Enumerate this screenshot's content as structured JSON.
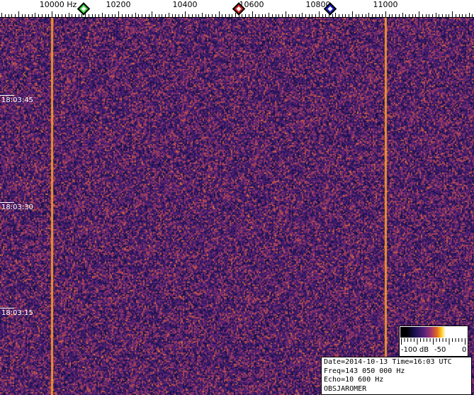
{
  "frequency_scale": {
    "unit": "Hz",
    "labels": [
      "10000 Hz",
      "10200",
      "10400",
      "10600",
      "10800",
      "11000"
    ],
    "label_values": [
      10000,
      10200,
      10400,
      10600,
      10800,
      11000
    ],
    "markers": [
      {
        "name": "green-marker",
        "freq": 10096,
        "color": "#3ad43a"
      },
      {
        "name": "red-marker",
        "freq": 10560,
        "color": "#d42020"
      },
      {
        "name": "blue-marker",
        "freq": 10834,
        "color": "#1c20c0"
      }
    ]
  },
  "time_axis": {
    "labels": [
      "18:03:45",
      "18:03:30",
      "18:03:15"
    ]
  },
  "waterfall": {
    "strong_lines_hz": [
      10000,
      11000
    ],
    "base_color": "#4a2272",
    "line_color": "#e88a30"
  },
  "colorbar": {
    "labels": [
      "-100 dB",
      "-50",
      "0"
    ]
  },
  "info": {
    "date_time": "Date=2014-10-13 Time=16:03 UTC",
    "freq": "Freq=143 050 000 Hz",
    "echo": "Echo=10 600 Hz",
    "station": "OBSJAROMER"
  }
}
